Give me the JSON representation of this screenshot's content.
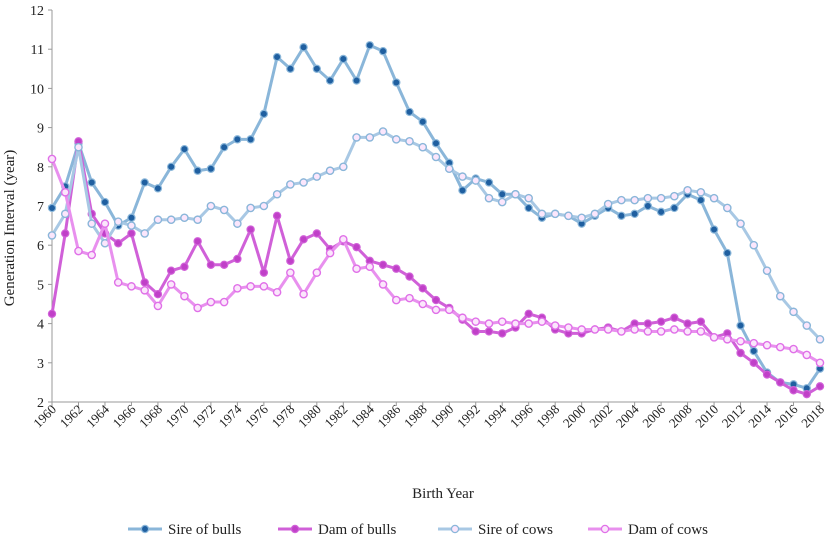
{
  "chart_data": {
    "type": "line",
    "title": "",
    "xlabel": "Birth Year",
    "ylabel": "Generation Interval (year)",
    "xlim": [
      1960,
      2018
    ],
    "ylim": [
      2,
      12
    ],
    "y_ticks": [
      2,
      3,
      4,
      5,
      6,
      7,
      8,
      9,
      10,
      11,
      12
    ],
    "x_ticks": [
      1960,
      1962,
      1964,
      1966,
      1968,
      1970,
      1972,
      1974,
      1976,
      1978,
      1980,
      1982,
      1984,
      1986,
      1988,
      1990,
      1992,
      1994,
      1996,
      1998,
      2000,
      2002,
      2004,
      2006,
      2008,
      2010,
      2012,
      2014,
      2016,
      2018
    ],
    "x": [
      1960,
      1961,
      1962,
      1963,
      1964,
      1965,
      1966,
      1967,
      1968,
      1969,
      1970,
      1971,
      1972,
      1973,
      1974,
      1975,
      1976,
      1977,
      1978,
      1979,
      1980,
      1981,
      1982,
      1983,
      1984,
      1985,
      1986,
      1987,
      1988,
      1989,
      1990,
      1991,
      1992,
      1993,
      1994,
      1995,
      1996,
      1997,
      1998,
      1999,
      2000,
      2001,
      2002,
      2003,
      2004,
      2005,
      2006,
      2007,
      2008,
      2009,
      2010,
      2011,
      2012,
      2013,
      2014,
      2015,
      2016,
      2017,
      2018
    ],
    "legend_position": "bottom",
    "grid": false,
    "series": [
      {
        "name": "Sire of bulls",
        "color": "#1f5fa0",
        "line_color": "#8ab6d9",
        "marker": "filled",
        "values": [
          6.95,
          7.5,
          8.6,
          7.6,
          7.1,
          6.5,
          6.7,
          7.6,
          7.45,
          8.0,
          8.45,
          7.9,
          7.95,
          8.5,
          8.7,
          8.7,
          9.35,
          10.8,
          10.5,
          11.05,
          10.5,
          10.2,
          10.75,
          10.2,
          11.1,
          10.95,
          10.15,
          9.4,
          9.15,
          8.6,
          8.1,
          7.4,
          7.7,
          7.6,
          7.3,
          7.3,
          6.95,
          6.7,
          6.8,
          6.75,
          6.55,
          6.75,
          6.95,
          6.75,
          6.8,
          7.0,
          6.85,
          6.95,
          7.3,
          7.15,
          6.4,
          5.8,
          3.95,
          3.3,
          2.75,
          2.5,
          2.45,
          2.35,
          2.85
        ]
      },
      {
        "name": "Dam of bulls",
        "color": "#c040c8",
        "line_color": "#d060d8",
        "marker": "filled",
        "values": [
          4.25,
          6.3,
          8.65,
          6.8,
          6.3,
          6.05,
          6.3,
          5.05,
          4.75,
          5.35,
          5.45,
          6.1,
          5.5,
          5.5,
          5.65,
          6.4,
          5.3,
          6.75,
          5.6,
          6.15,
          6.3,
          5.9,
          6.1,
          5.95,
          5.6,
          5.5,
          5.4,
          5.2,
          4.9,
          4.6,
          4.4,
          4.1,
          3.8,
          3.8,
          3.75,
          3.9,
          4.25,
          4.15,
          3.85,
          3.75,
          3.75,
          3.85,
          3.9,
          3.8,
          4.0,
          4.0,
          4.05,
          4.15,
          4.0,
          4.05,
          3.65,
          3.75,
          3.25,
          3.0,
          2.7,
          2.5,
          2.3,
          2.2,
          2.4
        ]
      },
      {
        "name": "Sire of cows",
        "color": "#8ab6d9",
        "line_color": "#a8c8e4",
        "marker": "hollow",
        "values": [
          6.25,
          6.8,
          8.5,
          6.55,
          6.05,
          6.6,
          6.5,
          6.3,
          6.65,
          6.65,
          6.7,
          6.65,
          7.0,
          6.9,
          6.55,
          6.95,
          7.0,
          7.3,
          7.55,
          7.6,
          7.75,
          7.9,
          8.0,
          8.75,
          8.75,
          8.9,
          8.7,
          8.65,
          8.5,
          8.25,
          7.95,
          7.75,
          7.65,
          7.2,
          7.1,
          7.3,
          7.2,
          6.8,
          6.8,
          6.75,
          6.7,
          6.8,
          7.05,
          7.15,
          7.15,
          7.2,
          7.2,
          7.25,
          7.4,
          7.35,
          7.2,
          6.95,
          6.55,
          6.0,
          5.35,
          4.7,
          4.3,
          3.95,
          3.6
        ]
      },
      {
        "name": "Dam of cows",
        "color": "#e070e8",
        "line_color": "#e890ee",
        "marker": "hollow",
        "values": [
          8.2,
          7.35,
          5.85,
          5.75,
          6.55,
          5.05,
          4.95,
          4.85,
          4.45,
          5.0,
          4.7,
          4.4,
          4.55,
          4.55,
          4.9,
          4.95,
          4.95,
          4.8,
          5.3,
          4.75,
          5.3,
          5.8,
          6.15,
          5.4,
          5.45,
          5.0,
          4.6,
          4.65,
          4.5,
          4.35,
          4.35,
          4.15,
          4.05,
          4.0,
          4.05,
          4.0,
          4.0,
          4.05,
          3.95,
          3.9,
          3.85,
          3.85,
          3.85,
          3.8,
          3.85,
          3.8,
          3.8,
          3.85,
          3.8,
          3.8,
          3.65,
          3.6,
          3.55,
          3.5,
          3.45,
          3.4,
          3.35,
          3.2,
          3.0
        ]
      }
    ]
  }
}
